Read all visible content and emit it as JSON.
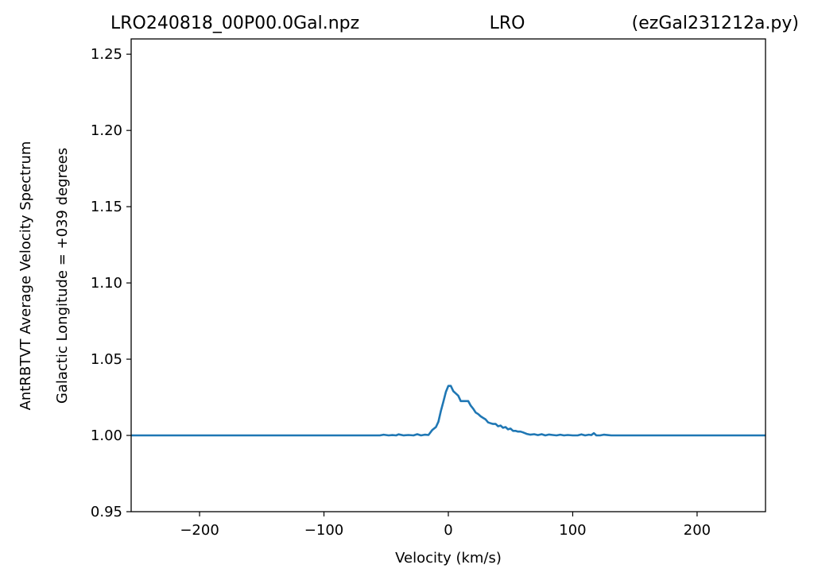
{
  "chart_data": {
    "type": "line",
    "title_parts": [
      "LRO240818_00P00.0Gal.npz",
      "LRO",
      "(ezGal231212a.py)"
    ],
    "xlabel": "Velocity (km/s)",
    "ylabel_lines": [
      "AntRBTVT Average Velocity Spectrum",
      "Galactic Longitude = +039 degrees"
    ],
    "xlim": [
      -255,
      255
    ],
    "ylim": [
      0.95,
      1.26
    ],
    "xticks": [
      -200,
      -100,
      0,
      100,
      200
    ],
    "xtick_labels": [
      "−200",
      "−100",
      "0",
      "100",
      "200"
    ],
    "yticks": [
      0.95,
      1.0,
      1.05,
      1.1,
      1.15,
      1.2,
      1.25
    ],
    "ytick_labels": [
      "0.95",
      "1.00",
      "1.05",
      "1.10",
      "1.15",
      "1.20",
      "1.25"
    ],
    "grid": false,
    "series": [
      {
        "color": "#1f77b4",
        "x": [
          -255,
          -60,
          -55,
          -52,
          -48,
          -45,
          -42,
          -40,
          -36,
          -32,
          -28,
          -25,
          -22,
          -19,
          -16,
          -13,
          -10,
          -8,
          -6,
          -4,
          -2,
          0,
          2,
          4,
          6,
          8,
          10,
          12,
          14,
          16,
          18,
          20,
          22,
          24,
          26,
          28,
          30,
          32,
          34,
          36,
          38,
          40,
          42,
          44,
          46,
          48,
          50,
          52,
          54,
          56,
          58,
          60,
          63,
          66,
          69,
          72,
          75,
          78,
          81,
          84,
          87,
          90,
          93,
          96,
          100,
          104,
          107,
          110,
          113,
          115,
          117,
          119,
          122,
          125,
          128,
          131,
          135,
          255
        ],
        "y": [
          1.0,
          1.0,
          1.0,
          1.0005,
          1.0,
          1.0002,
          1.0,
          1.0007,
          1.0,
          1.0003,
          1.0,
          1.0008,
          1.0,
          1.0005,
          1.0003,
          1.0035,
          1.0055,
          1.009,
          1.016,
          1.022,
          1.0285,
          1.0325,
          1.0325,
          1.029,
          1.0275,
          1.026,
          1.0225,
          1.0225,
          1.0225,
          1.0225,
          1.0195,
          1.0175,
          1.015,
          1.014,
          1.0125,
          1.0115,
          1.0105,
          1.0085,
          1.008,
          1.0075,
          1.0075,
          1.006,
          1.0065,
          1.005,
          1.0055,
          1.004,
          1.0045,
          1.003,
          1.003,
          1.0025,
          1.0025,
          1.002,
          1.001,
          1.0005,
          1.0008,
          1.0002,
          1.0008,
          1.0,
          1.0006,
          1.0003,
          1.0,
          1.0005,
          1.0,
          1.0003,
          1.0,
          1.0,
          1.0007,
          1.0,
          1.0005,
          1.0002,
          1.0015,
          1.0,
          1.0,
          1.0005,
          1.0002,
          1.0,
          1.0,
          1.0
        ]
      }
    ]
  }
}
